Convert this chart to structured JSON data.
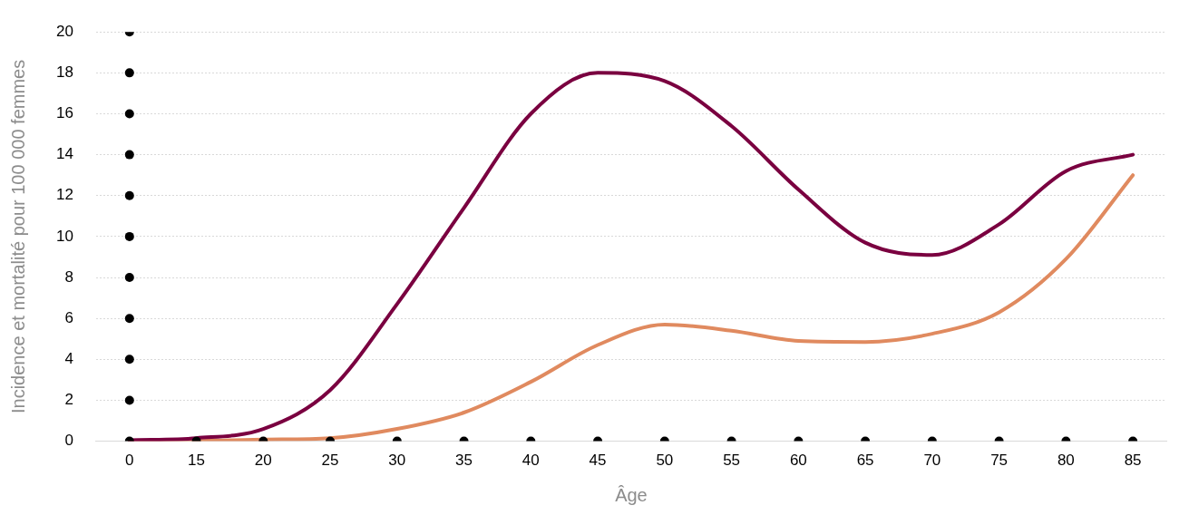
{
  "chart_data": {
    "type": "line",
    "xlabel": "Âge",
    "ylabel": "Incidence et mortalité pour 100 000 femmes",
    "categories": [
      "0",
      "15",
      "20",
      "25",
      "30",
      "35",
      "40",
      "45",
      "50",
      "55",
      "60",
      "65",
      "70",
      "75",
      "80",
      "85"
    ],
    "series": [
      {
        "color": "#7a0040",
        "values": [
          0.05,
          0.15,
          0.6,
          2.5,
          6.7,
          11.4,
          16.0,
          18.0,
          17.6,
          15.4,
          12.3,
          9.7,
          9.1,
          10.6,
          13.2,
          14.0
        ]
      },
      {
        "color": "#e08a5f",
        "values": [
          0,
          0.02,
          0.08,
          0.15,
          0.6,
          1.4,
          2.9,
          4.7,
          5.7,
          5.4,
          4.9,
          4.85,
          5.25,
          6.3,
          8.9,
          13.0
        ]
      },
      {
        "type": "scatter",
        "color": "#000000",
        "marker": "circle",
        "x": [
          "0",
          "0",
          "0",
          "0",
          "0",
          "0",
          "0",
          "0",
          "0",
          "0",
          "0",
          "15",
          "20",
          "25",
          "30",
          "35",
          "40",
          "45",
          "50",
          "55",
          "60",
          "65",
          "70",
          "75",
          "80",
          "85"
        ],
        "values": [
          0,
          2,
          4,
          6,
          8,
          10,
          12,
          14,
          16,
          18,
          20,
          0,
          0,
          0,
          0,
          0,
          0,
          0,
          0,
          0,
          0,
          0,
          0,
          0,
          0,
          0
        ]
      }
    ],
    "ylim": [
      0,
      20
    ],
    "yticks": [
      0,
      2,
      4,
      6,
      8,
      10,
      12,
      14,
      16,
      18,
      20
    ],
    "grid": "y",
    "legend": false,
    "marker": "none",
    "line_style": "solid"
  }
}
